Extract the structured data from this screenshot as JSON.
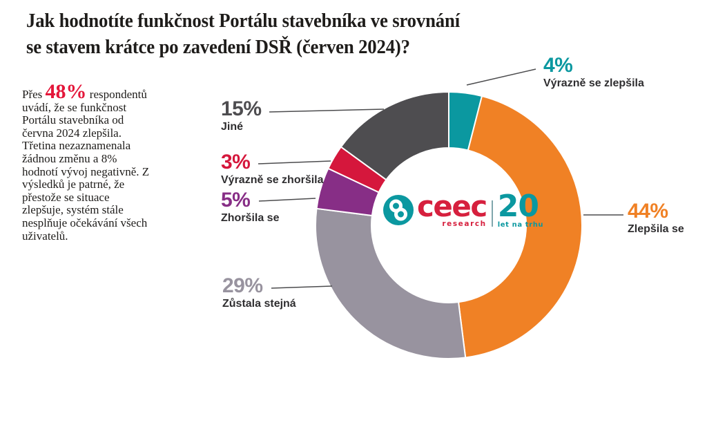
{
  "title": {
    "line1": "Jak hodnotíte funkčnost Portálu stavebníka ve srovnání",
    "line2": "se stavem krátce po zavedení DSŘ (červen 2024)?"
  },
  "intro": {
    "pre": "Přes",
    "highlight": "48%",
    "highlight_color": "#E4173A",
    "post": "respondentů uvádí, že se funkčnost Portálu stavebníka od června 2024 zlepšila. Třetina nezaznamenala žádnou změnu a 8% hodnotí vývoj negativně. Z výsledků je patrné, že přestože se situace zlepšuje, systém stále nesplňuje očekávání všech uživatelů."
  },
  "logo": {
    "brand": "ceec",
    "brand_sub": "research",
    "anniversary": "20",
    "anniversary_sub": "let na trhu",
    "brand_color": "#D6203E",
    "accent_color": "#0B98A0"
  },
  "chart_data": {
    "type": "pie",
    "variant": "donut",
    "title": "Jak hodnotíte funkčnost Portálu stavebníka ve srovnání se stavem krátce po zavedení DSŘ (červen 2024)?",
    "start_angle": "top",
    "direction": "clockwise",
    "hole_ratio": 0.58,
    "legend_position": "callouts",
    "slices": [
      {
        "label": "Výrazně se zlepšila",
        "value": 4,
        "pct": "4%",
        "color": "#0B98A0"
      },
      {
        "label": "Zlepšila se",
        "value": 44,
        "pct": "44%",
        "color": "#F08125"
      },
      {
        "label": "Zůstala stejná",
        "value": 29,
        "pct": "29%",
        "color": "#98939F"
      },
      {
        "label": "Zhoršila se",
        "value": 5,
        "pct": "5%",
        "color": "#872E86"
      },
      {
        "label": "Výrazně se zhoršila",
        "value": 3,
        "pct": "3%",
        "color": "#D5173C"
      },
      {
        "label": "Jiné",
        "value": 15,
        "pct": "15%",
        "color": "#4E4D50"
      }
    ]
  }
}
